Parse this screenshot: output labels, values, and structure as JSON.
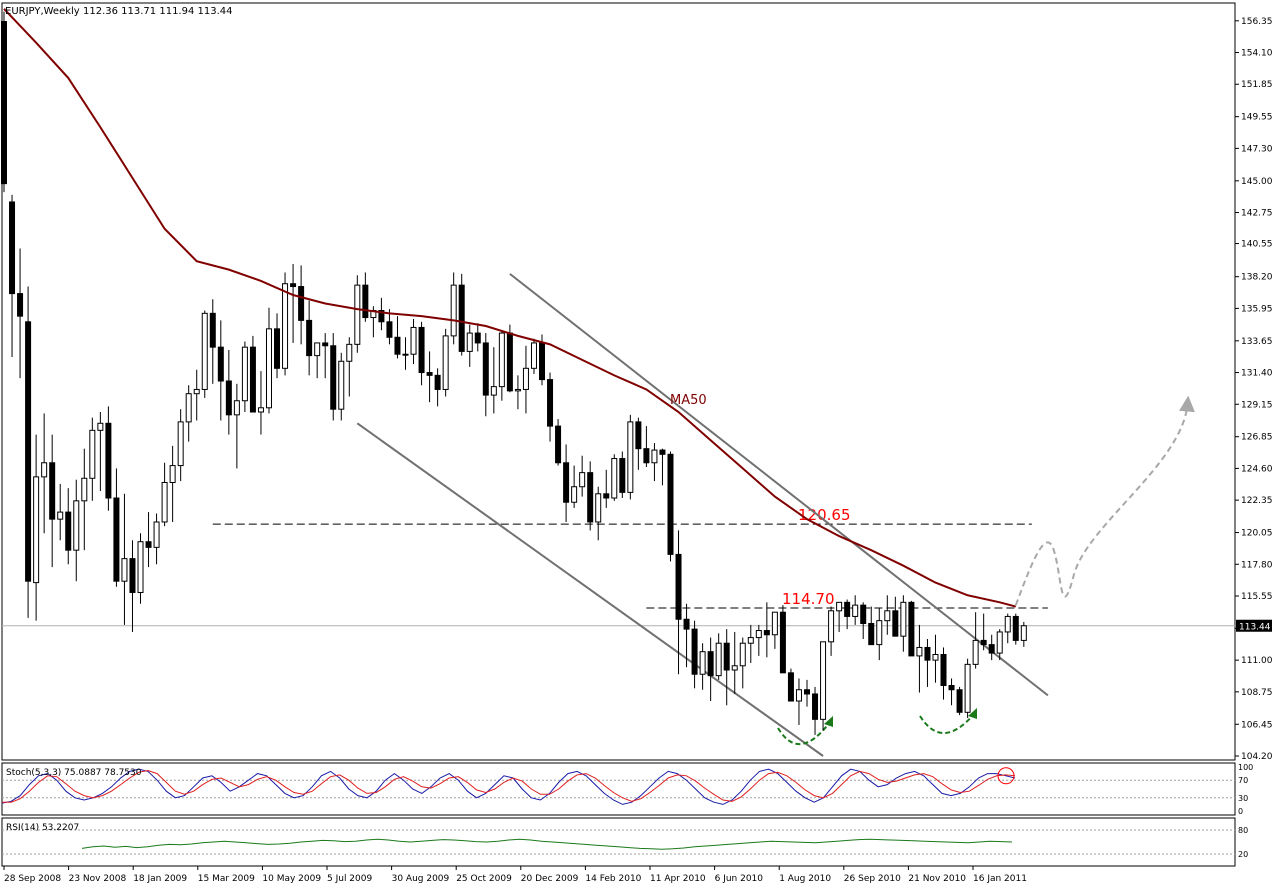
{
  "header": {
    "symbol": "EURJPY,Weekly",
    "ohlc": "112.36 113.71 111.94 113.44"
  },
  "chart_data": {
    "type": "candlestick",
    "symbol": "EURJPY",
    "timeframe": "Weekly",
    "last_price_label": "113.44",
    "last_price": 113.44,
    "ylim": [
      104.2,
      157.4
    ],
    "y_tick_labels": [
      "156.35",
      "154.10",
      "151.85",
      "149.55",
      "147.30",
      "145.00",
      "142.75",
      "140.55",
      "138.20",
      "135.95",
      "133.65",
      "131.40",
      "129.15",
      "126.85",
      "124.60",
      "122.35",
      "120.05",
      "117.80",
      "115.55",
      "113.25",
      "111.00",
      "108.75",
      "106.45",
      "104.20"
    ],
    "x_tick_labels": [
      "28 Sep 2008",
      "23 Nov 2008",
      "18 Jan 2009",
      "15 Mar 2009",
      "10 May 2009",
      "5 Jul 2009",
      "30 Aug 2009",
      "25 Oct 2009",
      "20 Dec 2009",
      "14 Feb 2010",
      "11 Apr 2010",
      "6 Jun 2010",
      "1 Aug 2010",
      "26 Sep 2010",
      "21 Nov 2010",
      "16 Jan 2011"
    ],
    "candles_ohlc": [
      [
        156.3,
        157.0,
        144.2,
        144.8
      ],
      [
        143.5,
        144.0,
        132.5,
        137.0
      ],
      [
        137.0,
        140.2,
        131.0,
        135.4
      ],
      [
        135.0,
        137.5,
        114.0,
        116.6
      ],
      [
        116.5,
        127.0,
        113.8,
        124.0
      ],
      [
        124.0,
        128.5,
        120.0,
        125.0
      ],
      [
        125.0,
        127.0,
        117.6,
        121.0
      ],
      [
        121.0,
        123.5,
        119.5,
        121.5
      ],
      [
        121.5,
        123.2,
        117.8,
        118.8
      ],
      [
        118.8,
        123.8,
        116.6,
        122.3
      ],
      [
        122.3,
        126.0,
        118.8,
        123.9
      ],
      [
        123.9,
        128.2,
        122.3,
        127.3
      ],
      [
        127.3,
        128.6,
        123.0,
        127.8
      ],
      [
        127.8,
        129.0,
        121.6,
        122.5
      ],
      [
        122.5,
        124.6,
        116.2,
        116.6
      ],
      [
        116.6,
        122.8,
        113.5,
        118.2
      ],
      [
        118.2,
        119.5,
        113.0,
        115.8
      ],
      [
        115.8,
        120.0,
        115.0,
        119.4
      ],
      [
        119.4,
        121.5,
        117.6,
        119.0
      ],
      [
        119.0,
        121.4,
        117.8,
        120.8
      ],
      [
        120.8,
        125.0,
        120.5,
        123.6
      ],
      [
        123.6,
        126.2,
        120.8,
        124.8
      ],
      [
        124.8,
        128.8,
        123.7,
        127.9
      ],
      [
        127.9,
        130.5,
        126.5,
        129.9
      ],
      [
        129.9,
        131.6,
        128.0,
        130.2
      ],
      [
        130.2,
        135.8,
        129.6,
        135.6
      ],
      [
        135.6,
        136.6,
        130.6,
        133.2
      ],
      [
        133.2,
        135.1,
        128.0,
        130.8
      ],
      [
        130.8,
        133.0,
        127.0,
        128.4
      ],
      [
        128.4,
        130.6,
        124.6,
        129.4
      ],
      [
        129.4,
        133.6,
        128.6,
        133.2
      ],
      [
        133.2,
        134.0,
        129.0,
        128.6
      ],
      [
        128.6,
        131.5,
        127.0,
        128.9
      ],
      [
        128.9,
        136.0,
        128.5,
        134.5
      ],
      [
        134.5,
        135.6,
        131.0,
        131.7
      ],
      [
        131.7,
        138.5,
        131.2,
        137.7
      ],
      [
        137.7,
        139.1,
        133.5,
        137.5
      ],
      [
        137.5,
        139.0,
        133.4,
        135.1
      ],
      [
        135.1,
        136.5,
        131.2,
        132.6
      ],
      [
        132.6,
        133.4,
        131.0,
        133.5
      ],
      [
        133.5,
        134.2,
        131.0,
        133.3
      ],
      [
        133.3,
        134.2,
        128.0,
        128.8
      ],
      [
        128.8,
        132.8,
        128.0,
        132.2
      ],
      [
        132.2,
        133.9,
        129.7,
        133.4
      ],
      [
        133.4,
        138.3,
        132.8,
        137.6
      ],
      [
        137.6,
        138.5,
        135.0,
        135.3
      ],
      [
        135.3,
        136.1,
        133.9,
        135.8
      ],
      [
        135.8,
        136.7,
        134.4,
        135.0
      ],
      [
        135.0,
        135.9,
        133.4,
        133.9
      ],
      [
        133.9,
        135.4,
        132.4,
        132.7
      ],
      [
        132.7,
        133.9,
        131.6,
        132.7
      ],
      [
        132.7,
        135.2,
        132.0,
        134.6
      ],
      [
        134.6,
        135.0,
        130.5,
        131.4
      ],
      [
        131.4,
        132.9,
        129.3,
        131.2
      ],
      [
        131.2,
        131.7,
        129.0,
        130.2
      ],
      [
        130.2,
        134.5,
        129.7,
        134.0
      ],
      [
        134.0,
        138.5,
        133.4,
        137.6
      ],
      [
        137.6,
        138.4,
        132.6,
        132.9
      ],
      [
        132.9,
        134.8,
        131.8,
        134.2
      ],
      [
        134.2,
        134.9,
        132.9,
        133.5
      ],
      [
        133.5,
        134.2,
        128.3,
        129.8
      ],
      [
        129.8,
        133.2,
        128.5,
        130.4
      ],
      [
        130.4,
        134.3,
        129.4,
        134.2
      ],
      [
        134.2,
        134.8,
        130.0,
        130.1
      ],
      [
        130.1,
        131.2,
        128.8,
        130.2
      ],
      [
        130.2,
        133.3,
        128.5,
        131.7
      ],
      [
        131.7,
        133.8,
        131.3,
        133.5
      ],
      [
        133.5,
        134.1,
        130.5,
        130.9
      ],
      [
        130.9,
        131.4,
        126.5,
        127.6
      ],
      [
        127.6,
        128.1,
        124.8,
        125.0
      ],
      [
        125.0,
        126.3,
        120.8,
        122.2
      ],
      [
        122.2,
        124.8,
        121.8,
        123.3
      ],
      [
        123.3,
        125.5,
        122.6,
        124.3
      ],
      [
        124.3,
        125.1,
        120.2,
        120.8
      ],
      [
        120.8,
        123.3,
        119.5,
        122.8
      ],
      [
        122.8,
        124.5,
        121.8,
        122.5
      ],
      [
        122.5,
        125.6,
        122.3,
        125.3
      ],
      [
        125.3,
        125.8,
        122.5,
        122.9
      ],
      [
        122.9,
        128.4,
        122.4,
        127.9
      ],
      [
        127.9,
        128.2,
        124.5,
        126.0
      ],
      [
        126.0,
        127.6,
        124.7,
        125.0
      ],
      [
        125.0,
        126.4,
        123.7,
        125.9
      ],
      [
        125.9,
        126.0,
        123.4,
        125.6
      ],
      [
        125.6,
        125.8,
        118.0,
        118.5
      ],
      [
        118.5,
        120.2,
        110.0,
        113.9
      ],
      [
        113.9,
        115.0,
        110.5,
        113.2
      ],
      [
        113.2,
        113.8,
        109.0,
        110.0
      ],
      [
        110.0,
        112.2,
        108.9,
        111.6
      ],
      [
        111.6,
        112.6,
        108.1,
        109.9
      ],
      [
        109.9,
        112.9,
        109.6,
        112.2
      ],
      [
        112.2,
        113.2,
        107.8,
        110.3
      ],
      [
        110.3,
        113.0,
        108.6,
        110.6
      ],
      [
        110.6,
        112.6,
        109.0,
        112.2
      ],
      [
        112.2,
        113.5,
        110.8,
        112.6
      ],
      [
        112.6,
        113.5,
        111.3,
        113.1
      ],
      [
        113.1,
        115.1,
        111.2,
        112.8
      ],
      [
        112.8,
        114.0,
        111.8,
        114.4
      ],
      [
        114.4,
        114.9,
        110.5,
        110.1
      ],
      [
        110.1,
        110.4,
        108.1,
        108.1
      ],
      [
        108.1,
        109.7,
        106.4,
        108.9
      ],
      [
        108.9,
        109.6,
        107.7,
        108.6
      ],
      [
        108.6,
        109.1,
        105.7,
        106.8
      ],
      [
        106.8,
        110.5,
        106.0,
        112.3
      ],
      [
        112.3,
        114.8,
        111.3,
        114.5
      ],
      [
        114.5,
        115.1,
        113.0,
        115.1
      ],
      [
        115.1,
        115.3,
        113.2,
        114.1
      ],
      [
        114.1,
        115.6,
        113.5,
        114.9
      ],
      [
        114.9,
        115.1,
        112.5,
        113.6
      ],
      [
        113.6,
        114.8,
        112.7,
        112.1
      ],
      [
        112.1,
        114.7,
        111.0,
        113.8
      ],
      [
        113.8,
        115.6,
        112.8,
        114.5
      ],
      [
        114.5,
        115.5,
        112.9,
        112.7
      ],
      [
        112.7,
        115.6,
        111.6,
        115.1
      ],
      [
        115.1,
        115.2,
        112.1,
        111.3
      ],
      [
        111.3,
        113.5,
        108.7,
        111.9
      ],
      [
        111.9,
        112.5,
        109.1,
        111.0
      ],
      [
        111.0,
        112.8,
        109.4,
        111.4
      ],
      [
        111.4,
        111.9,
        108.2,
        109.2
      ],
      [
        109.2,
        109.7,
        107.8,
        108.9
      ],
      [
        108.9,
        109.1,
        107.1,
        107.3
      ],
      [
        107.3,
        111.1,
        106.9,
        110.7
      ],
      [
        110.7,
        114.4,
        110.4,
        112.4
      ],
      [
        112.4,
        114.3,
        111.7,
        112.1
      ],
      [
        112.1,
        112.8,
        111.0,
        111.5
      ],
      [
        111.5,
        113.2,
        111.0,
        113.0
      ],
      [
        113.0,
        114.3,
        112.2,
        114.1
      ],
      [
        114.1,
        114.3,
        112.1,
        112.4
      ],
      [
        112.4,
        113.71,
        111.94,
        113.44
      ]
    ],
    "moving_average": {
      "label": "MA50",
      "values": [
        [
          0,
          157.2
        ],
        [
          4,
          154.8
        ],
        [
          8,
          152.3
        ],
        [
          12,
          148.8
        ],
        [
          16,
          145.2
        ],
        [
          20,
          141.6
        ],
        [
          24,
          139.3
        ],
        [
          28,
          138.7
        ],
        [
          32,
          137.9
        ],
        [
          36,
          136.9
        ],
        [
          40,
          136.3
        ],
        [
          44,
          135.9
        ],
        [
          48,
          135.6
        ],
        [
          52,
          135.4
        ],
        [
          56,
          135.1
        ],
        [
          60,
          134.7
        ],
        [
          64,
          134.0
        ],
        [
          68,
          133.4
        ],
        [
          72,
          132.3
        ],
        [
          76,
          131.2
        ],
        [
          80,
          130.2
        ],
        [
          84,
          128.6
        ],
        [
          88,
          126.6
        ],
        [
          92,
          124.6
        ],
        [
          96,
          122.6
        ],
        [
          100,
          121.0
        ],
        [
          104,
          119.8
        ],
        [
          108,
          118.8
        ],
        [
          112,
          117.7
        ],
        [
          116,
          116.5
        ],
        [
          120,
          115.6
        ],
        [
          124,
          115.1
        ],
        [
          126,
          114.8
        ]
      ]
    },
    "annotations": [
      {
        "type": "price_level",
        "label": "120.65",
        "value": 120.65,
        "x_from": 26,
        "x_to": 128
      },
      {
        "type": "price_level",
        "label": "114.70",
        "value": 114.7,
        "x_from": 80,
        "x_to": 130
      }
    ],
    "channel_lines": [
      {
        "from": [
          63,
          138.4
        ],
        "to": [
          130,
          108.5
        ]
      },
      {
        "from": [
          44,
          127.8
        ],
        "to": [
          102,
          104.2
        ]
      }
    ],
    "projection_path": {
      "style": "dashed",
      "arrow_tip": [
        147.4,
        129.2
      ]
    },
    "stochastic": {
      "label": "Stoch(5,3,3) 75.0887 78.7530",
      "levels": [
        "100",
        "70",
        "30",
        "0"
      ],
      "k_values": [
        18,
        22,
        35,
        60,
        80,
        85,
        70,
        45,
        30,
        25,
        30,
        40,
        55,
        75,
        90,
        95,
        90,
        70,
        45,
        30,
        35,
        55,
        75,
        80,
        65,
        45,
        55,
        70,
        85,
        80,
        60,
        40,
        30,
        35,
        55,
        80,
        90,
        75,
        50,
        35,
        30,
        45,
        70,
        85,
        70,
        50,
        40,
        55,
        75,
        85,
        70,
        45,
        30,
        40,
        60,
        80,
        75,
        50,
        30,
        25,
        40,
        65,
        85,
        90,
        80,
        60,
        40,
        25,
        15,
        20,
        35,
        55,
        75,
        90,
        85,
        70,
        50,
        30,
        20,
        15,
        25,
        45,
        70,
        90,
        95,
        85,
        65,
        45,
        30,
        20,
        30,
        55,
        80,
        95,
        90,
        70,
        55,
        60,
        75,
        85,
        90,
        80,
        60,
        40,
        35,
        40,
        55,
        75,
        85,
        85,
        80,
        75
      ],
      "d_values": [
        20,
        20,
        28,
        45,
        65,
        80,
        78,
        62,
        45,
        35,
        30,
        35,
        45,
        60,
        75,
        88,
        92,
        85,
        65,
        45,
        38,
        45,
        60,
        72,
        75,
        65,
        55,
        60,
        72,
        78,
        70,
        55,
        42,
        38,
        45,
        62,
        78,
        82,
        70,
        52,
        40,
        42,
        55,
        72,
        78,
        68,
        55,
        52,
        62,
        75,
        78,
        65,
        48,
        42,
        50,
        65,
        75,
        68,
        50,
        38,
        38,
        50,
        68,
        82,
        85,
        75,
        58,
        42,
        30,
        22,
        28,
        42,
        58,
        75,
        82,
        80,
        68,
        52,
        38,
        25,
        22,
        32,
        50,
        70,
        85,
        88,
        80,
        65,
        48,
        35,
        30,
        40,
        60,
        80,
        90,
        85,
        72,
        65,
        68,
        75,
        82,
        85,
        78,
        62,
        48,
        42,
        45,
        58,
        72,
        80,
        82,
        80
      ]
    },
    "rsi": {
      "label": "RSI(14) 53.2207",
      "levels": [
        "80",
        "20"
      ],
      "values": [
        34,
        38,
        40,
        37,
        39,
        36,
        38,
        42,
        44,
        43,
        45,
        48,
        50,
        52,
        50,
        48,
        46,
        44,
        45,
        47,
        50,
        52,
        54,
        53,
        51,
        52,
        55,
        57,
        55,
        52,
        50,
        52,
        54,
        56,
        55,
        53,
        51,
        50,
        52,
        55,
        57,
        55,
        52,
        50,
        48,
        46,
        44,
        42,
        40,
        38,
        36,
        34,
        33,
        32,
        33,
        35,
        38,
        40,
        42,
        44,
        46,
        48,
        50,
        52,
        51,
        50,
        49,
        48,
        50,
        52,
        54,
        56,
        57,
        56,
        55,
        54,
        53,
        52,
        51,
        50,
        49,
        48,
        50,
        52,
        51,
        50
      ]
    }
  }
}
